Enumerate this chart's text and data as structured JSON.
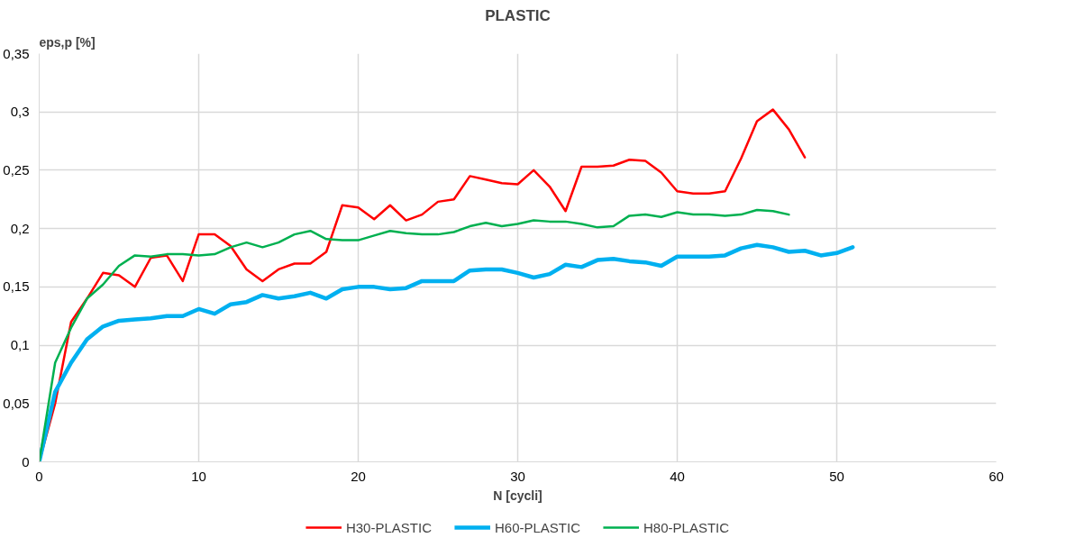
{
  "chart_data": {
    "type": "line",
    "title": "PLASTIC",
    "xlabel": "N [cycli]",
    "ylabel": "eps,p [%]",
    "xlim": [
      0,
      60
    ],
    "xticks": [
      0,
      10,
      20,
      30,
      40,
      50,
      60
    ],
    "ylim": [
      0,
      0.35
    ],
    "yticks": [
      0,
      {
        "value": 0.05,
        "label": "0,05"
      },
      {
        "value": 0.1,
        "label": "0,1"
      },
      {
        "value": 0.15,
        "label": "0,15"
      },
      {
        "value": 0.2,
        "label": "0,2"
      },
      {
        "value": 0.25,
        "label": "0,25"
      },
      {
        "value": 0.3,
        "label": "0,3"
      },
      {
        "value": 0.35,
        "label": "0,35"
      }
    ],
    "grid": true,
    "legend": "bottom",
    "marker": "none",
    "line_style": "solid",
    "series": [
      {
        "name": "H30-PLASTIC",
        "color": "#ff0000",
        "x": [
          0,
          1,
          2,
          3,
          4,
          5,
          6,
          7,
          8,
          9,
          10,
          11,
          12,
          13,
          14,
          15,
          16,
          17,
          18,
          19,
          20,
          21,
          22,
          23,
          24,
          25,
          26,
          27,
          28,
          29,
          30,
          31,
          32,
          33,
          34,
          35,
          36,
          37,
          38,
          39,
          40,
          41,
          42,
          43,
          44,
          45,
          46,
          47,
          48
        ],
        "values": [
          0,
          0.05,
          0.12,
          0.14,
          0.162,
          0.16,
          0.15,
          0.175,
          0.177,
          0.155,
          0.195,
          0.195,
          0.185,
          0.165,
          0.155,
          0.165,
          0.17,
          0.17,
          0.18,
          0.22,
          0.218,
          0.208,
          0.22,
          0.207,
          0.212,
          0.223,
          0.225,
          0.245,
          0.242,
          0.239,
          0.238,
          0.25,
          0.236,
          0.215,
          0.253,
          0.253,
          0.254,
          0.259,
          0.258,
          0.248,
          0.232,
          0.23,
          0.23,
          0.232,
          0.26,
          0.292,
          0.302,
          0.285,
          0.261
        ]
      },
      {
        "name": "H60-PLASTIC",
        "color": "#00b0f0",
        "x": [
          0,
          1,
          2,
          3,
          4,
          5,
          6,
          7,
          8,
          9,
          10,
          11,
          12,
          13,
          14,
          15,
          16,
          17,
          18,
          19,
          20,
          21,
          22,
          23,
          24,
          25,
          26,
          27,
          28,
          29,
          30,
          31,
          32,
          33,
          34,
          35,
          36,
          37,
          38,
          39,
          40,
          41,
          42,
          43,
          44,
          45,
          46,
          47,
          48,
          49,
          50,
          51
        ],
        "values": [
          0,
          0.06,
          0.085,
          0.105,
          0.116,
          0.121,
          0.122,
          0.123,
          0.125,
          0.125,
          0.131,
          0.127,
          0.135,
          0.137,
          0.143,
          0.14,
          0.142,
          0.145,
          0.14,
          0.148,
          0.15,
          0.15,
          0.148,
          0.149,
          0.155,
          0.155,
          0.155,
          0.164,
          0.165,
          0.165,
          0.162,
          0.158,
          0.161,
          0.169,
          0.167,
          0.173,
          0.174,
          0.172,
          0.171,
          0.168,
          0.176,
          0.176,
          0.176,
          0.177,
          0.183,
          0.186,
          0.184,
          0.18,
          0.181,
          0.177,
          0.179,
          0.184
        ]
      },
      {
        "name": "H80-PLASTIC",
        "color": "#00b050",
        "x": [
          0,
          1,
          2,
          3,
          4,
          5,
          6,
          7,
          8,
          9,
          10,
          11,
          12,
          13,
          14,
          15,
          16,
          17,
          18,
          19,
          20,
          21,
          22,
          23,
          24,
          25,
          26,
          27,
          28,
          29,
          30,
          31,
          32,
          33,
          34,
          35,
          36,
          37,
          38,
          39,
          40,
          41,
          42,
          43,
          44,
          45,
          46,
          47
        ],
        "values": [
          0,
          0.085,
          0.115,
          0.14,
          0.152,
          0.168,
          0.177,
          0.176,
          0.178,
          0.178,
          0.177,
          0.178,
          0.184,
          0.188,
          0.184,
          0.188,
          0.195,
          0.198,
          0.191,
          0.19,
          0.19,
          0.194,
          0.198,
          0.196,
          0.195,
          0.195,
          0.197,
          0.202,
          0.205,
          0.202,
          0.204,
          0.207,
          0.206,
          0.206,
          0.204,
          0.201,
          0.202,
          0.211,
          0.212,
          0.21,
          0.214,
          0.212,
          0.212,
          0.211,
          0.212,
          0.216,
          0.215,
          0.212
        ]
      }
    ]
  }
}
